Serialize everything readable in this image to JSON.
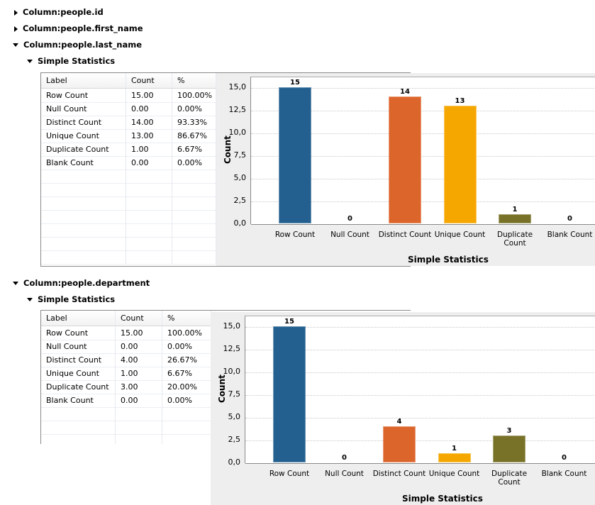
{
  "tree": [
    {
      "label": "Column:people.id",
      "expanded": false
    },
    {
      "label": "Column:people.first_name",
      "expanded": false
    },
    {
      "label": "Column:people.last_name",
      "expanded": true
    },
    {
      "label": "Column:people.department",
      "expanded": true
    }
  ],
  "section_label": "Simple Statistics",
  "table_headers": [
    "Label",
    "Count",
    "%"
  ],
  "tables": [
    {
      "rows": [
        [
          "Row Count",
          "15.00",
          "100.00%"
        ],
        [
          "Null Count",
          "0.00",
          "0.00%"
        ],
        [
          "Distinct Count",
          "14.00",
          "93.33%"
        ],
        [
          "Unique Count",
          "13.00",
          "86.67%"
        ],
        [
          "Duplicate Count",
          "1.00",
          "6.67%"
        ],
        [
          "Blank Count",
          "0.00",
          "0.00%"
        ]
      ]
    },
    {
      "rows": [
        [
          "Row Count",
          "15.00",
          "100.00%"
        ],
        [
          "Null Count",
          "0.00",
          "0.00%"
        ],
        [
          "Distinct Count",
          "4.00",
          "26.67%"
        ],
        [
          "Unique Count",
          "1.00",
          "6.67%"
        ],
        [
          "Duplicate Count",
          "3.00",
          "20.00%"
        ],
        [
          "Blank Count",
          "0.00",
          "0.00%"
        ]
      ]
    }
  ],
  "chart_data": [
    {
      "type": "bar",
      "title": "",
      "xlabel": "Simple Statistics",
      "ylabel": "Count",
      "ylim": [
        0,
        15
      ],
      "yticks": [
        "0,0",
        "2,5",
        "5,0",
        "7,5",
        "10,0",
        "12,5",
        "15,0"
      ],
      "grid": true,
      "categories": [
        "Row Count",
        "Null Count",
        "Distinct Count",
        "Unique Count",
        "Duplicate Count",
        "Blank Count"
      ],
      "values": [
        15,
        0,
        14,
        13,
        1,
        0
      ],
      "colors": [
        "#23608f",
        "#23608f",
        "#dc652b",
        "#f5a700",
        "#787228",
        "#787228"
      ]
    },
    {
      "type": "bar",
      "title": "",
      "xlabel": "Simple Statistics",
      "ylabel": "Count",
      "ylim": [
        0,
        15
      ],
      "yticks": [
        "0,0",
        "2,5",
        "5,0",
        "7,5",
        "10,0",
        "12,5",
        "15,0"
      ],
      "grid": true,
      "categories": [
        "Row Count",
        "Null Count",
        "Distinct Count",
        "Unique Count",
        "Duplicate Count",
        "Blank Count"
      ],
      "values": [
        15,
        0,
        4,
        1,
        3,
        0
      ],
      "colors": [
        "#23608f",
        "#23608f",
        "#dc652b",
        "#f5a700",
        "#787228",
        "#787228"
      ]
    }
  ]
}
